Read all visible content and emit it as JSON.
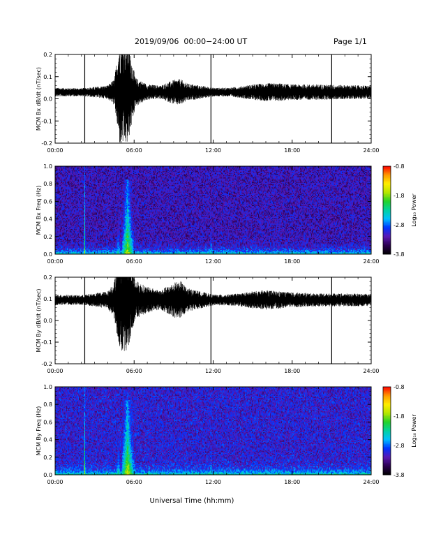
{
  "header": {
    "title": "2019/09/06  00:00−24:00 UT",
    "page": "Page 1/1"
  },
  "colors": {
    "background": "#ffffff",
    "trace": "#000000",
    "spectrogram_background": "#000000",
    "colormap": [
      "#000000",
      "#2a0050",
      "#5a18b4",
      "#0033ff",
      "#00bfff",
      "#00d2a0",
      "#22d22a",
      "#b6e600",
      "#ffee00",
      "#ff9900",
      "#ff0000"
    ]
  },
  "chart_data": [
    {
      "type": "line",
      "title": "",
      "ylabel": "MCM Bx dB/dt (nT/sec)",
      "xlabel": "",
      "xlim": [
        "00:00",
        "24:00"
      ],
      "ylim": [
        -0.2,
        0.2
      ],
      "x_ticks": [
        "00:00",
        "06:00",
        "12:00",
        "18:00",
        "24:00"
      ],
      "y_ticks": [
        "-0.2",
        "-0.1",
        "0.0",
        "0.1",
        "0.2"
      ],
      "baseline": 0.03,
      "activity_hours": [
        0,
        2,
        4,
        4.5,
        4.9,
        5.5,
        6.1,
        7,
        8,
        9,
        9.5,
        10,
        11,
        12,
        13,
        14,
        15,
        16,
        17,
        18,
        20,
        22,
        24
      ],
      "activity_amplitude": [
        0.02,
        0.018,
        0.03,
        0.06,
        0.24,
        0.24,
        0.065,
        0.035,
        0.03,
        0.055,
        0.06,
        0.04,
        0.03,
        0.02,
        0.02,
        0.025,
        0.035,
        0.04,
        0.04,
        0.035,
        0.035,
        0.032,
        0.03
      ],
      "spikes": [
        {
          "time": "02:15",
          "min": -0.2,
          "max": 0.2
        },
        {
          "time": "11:50",
          "min": -0.2,
          "max": 0.2
        },
        {
          "time": "21:00",
          "min": -0.2,
          "max": 0.2
        }
      ],
      "grid": false
    },
    {
      "type": "heatmap",
      "title": "",
      "ylabel": "MCM Bx Freq (Hz)",
      "xlabel": "",
      "xlim": [
        "00:00",
        "24:00"
      ],
      "ylim": [
        0.0,
        1.0
      ],
      "x_ticks": [
        "00:00",
        "06:00",
        "12:00",
        "18:00",
        "24:00"
      ],
      "y_ticks": [
        "0.0",
        "0.2",
        "0.4",
        "0.6",
        "0.8",
        "1.0"
      ],
      "colorbar": {
        "label": "Log₁₀ Power",
        "ticks": [
          "-0.8",
          "-1.8",
          "-2.8",
          "-3.8"
        ],
        "range": [
          -3.8,
          -0.8
        ]
      },
      "floor_power": -3.8,
      "low_freq_power": -2.9,
      "band_events": [
        {
          "time": "02:15",
          "width_hours": 0.08,
          "peak_power": -1.5,
          "top_freq": 1.0
        },
        {
          "time": "04:48",
          "width_hours": 0.35,
          "peak_power": -2.0,
          "top_freq": 0.6
        },
        {
          "time": "05:30",
          "width_hours": 0.55,
          "peak_power": -1.3,
          "top_freq": 0.85
        },
        {
          "time": "06:15",
          "width_hours": 0.25,
          "peak_power": -2.7,
          "top_freq": 0.6
        },
        {
          "time": "07:10",
          "width_hours": 0.3,
          "peak_power": -2.9,
          "top_freq": 0.4
        },
        {
          "time": "09:30",
          "width_hours": 0.6,
          "peak_power": -2.8,
          "top_freq": 0.45
        },
        {
          "time": "11:50",
          "width_hours": 0.08,
          "peak_power": -1.7,
          "top_freq": 0.5
        },
        {
          "time": "16:00",
          "width_hours": 1.0,
          "peak_power": -2.9,
          "top_freq": 0.3
        },
        {
          "time": "21:30",
          "width_hours": 1.5,
          "peak_power": -2.8,
          "top_freq": 0.4
        }
      ]
    },
    {
      "type": "line",
      "title": "",
      "ylabel": "MCM By dB/dt (nT/sec)",
      "xlabel": "",
      "xlim": [
        "00:00",
        "24:00"
      ],
      "ylim": [
        -0.2,
        0.2
      ],
      "x_ticks": [
        "00:00",
        "06:00",
        "12:00",
        "18:00",
        "24:00"
      ],
      "y_ticks": [
        "-0.2",
        "-0.1",
        "0.0",
        "0.1",
        "0.2"
      ],
      "baseline": 0.095,
      "activity_hours": [
        0,
        2,
        4,
        4.5,
        4.9,
        5.5,
        6.1,
        7,
        8,
        9,
        9.5,
        10,
        11,
        12,
        13,
        14,
        15,
        16,
        17,
        18,
        20,
        22,
        24
      ],
      "activity_amplitude": [
        0.025,
        0.022,
        0.04,
        0.09,
        0.24,
        0.24,
        0.09,
        0.06,
        0.045,
        0.08,
        0.09,
        0.055,
        0.04,
        0.025,
        0.025,
        0.03,
        0.04,
        0.045,
        0.04,
        0.035,
        0.03,
        0.03,
        0.028
      ],
      "spikes": [
        {
          "time": "02:15",
          "min": -0.2,
          "max": 0.2
        },
        {
          "time": "11:50",
          "min": -0.2,
          "max": 0.2
        },
        {
          "time": "21:00",
          "min": -0.2,
          "max": 0.2
        }
      ],
      "grid": false
    },
    {
      "type": "heatmap",
      "title": "",
      "ylabel": "MCM By Freq (Hz)",
      "xlabel": "Universal Time (hh:mm)",
      "xlim": [
        "00:00",
        "24:00"
      ],
      "ylim": [
        0.0,
        1.0
      ],
      "x_ticks": [
        "00:00",
        "06:00",
        "12:00",
        "18:00",
        "24:00"
      ],
      "y_ticks": [
        "0.0",
        "0.2",
        "0.4",
        "0.6",
        "0.8",
        "1.0"
      ],
      "colorbar": {
        "label": "Log₁₀ Power",
        "ticks": [
          "-0.8",
          "-1.8",
          "-2.8",
          "-3.8"
        ],
        "range": [
          -3.8,
          -0.8
        ]
      },
      "floor_power": -3.8,
      "low_freq_power": -2.8,
      "band_events": [
        {
          "time": "02:15",
          "width_hours": 0.08,
          "peak_power": -1.4,
          "top_freq": 1.0
        },
        {
          "time": "04:48",
          "width_hours": 0.35,
          "peak_power": -1.9,
          "top_freq": 0.55
        },
        {
          "time": "05:30",
          "width_hours": 0.55,
          "peak_power": -1.2,
          "top_freq": 0.85
        },
        {
          "time": "06:20",
          "width_hours": 0.25,
          "peak_power": -2.6,
          "top_freq": 0.5
        },
        {
          "time": "09:30",
          "width_hours": 0.6,
          "peak_power": -2.7,
          "top_freq": 0.4
        },
        {
          "time": "11:50",
          "width_hours": 0.08,
          "peak_power": -1.7,
          "top_freq": 0.5
        },
        {
          "time": "15:00",
          "width_hours": 1.5,
          "peak_power": -2.9,
          "top_freq": 0.3
        },
        {
          "time": "21:00",
          "width_hours": 2.0,
          "peak_power": -2.6,
          "top_freq": 0.5
        }
      ]
    }
  ]
}
